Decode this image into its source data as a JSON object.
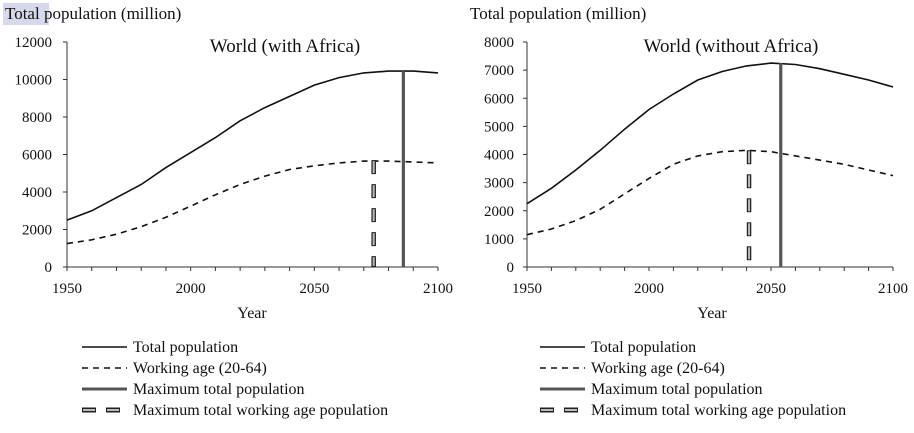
{
  "chart_data": [
    {
      "type": "line",
      "y_axis_title": "Total population (million)",
      "y_axis_title_highlight": "Total",
      "title": "World (with Africa)",
      "xlabel": "Year",
      "xlim": [
        1950,
        2100
      ],
      "ylim": [
        0,
        12000
      ],
      "x_ticks": [
        1950,
        2000,
        2050,
        2100
      ],
      "y_ticks": [
        0,
        2000,
        4000,
        6000,
        8000,
        10000,
        12000
      ],
      "grid": false,
      "x": [
        1950,
        1960,
        1970,
        1980,
        1990,
        2000,
        2010,
        2020,
        2030,
        2040,
        2050,
        2060,
        2070,
        2080,
        2090,
        2100
      ],
      "series": [
        {
          "name": "Total population",
          "style": "solid",
          "values": [
            2500,
            3000,
            3700,
            4400,
            5300,
            6100,
            6900,
            7800,
            8500,
            9100,
            9700,
            10100,
            10350,
            10450,
            10450,
            10350
          ]
        },
        {
          "name": "Working age (20-64)",
          "style": "dashed",
          "values": [
            1250,
            1450,
            1750,
            2150,
            2650,
            3250,
            3850,
            4400,
            4850,
            5200,
            5400,
            5550,
            5650,
            5650,
            5600,
            5550
          ]
        }
      ],
      "markers": [
        {
          "name": "Maximum total population",
          "x": 2086,
          "y": 10450,
          "style": "solid"
        },
        {
          "name": "Maximum total working age population",
          "x": 2074,
          "y": 5700,
          "style": "dashed"
        }
      ]
    },
    {
      "type": "line",
      "y_axis_title": "Total population (million)",
      "title": "World (without Africa)",
      "xlabel": "Year",
      "xlim": [
        1950,
        2100
      ],
      "ylim": [
        0,
        8000
      ],
      "x_ticks": [
        1950,
        2000,
        2050,
        2100
      ],
      "y_ticks": [
        0,
        1000,
        2000,
        3000,
        4000,
        5000,
        6000,
        7000,
        8000
      ],
      "grid": false,
      "x": [
        1950,
        1960,
        1970,
        1980,
        1990,
        2000,
        2010,
        2020,
        2030,
        2040,
        2050,
        2060,
        2070,
        2080,
        2090,
        2100
      ],
      "series": [
        {
          "name": "Total population",
          "style": "solid",
          "values": [
            2250,
            2800,
            3450,
            4150,
            4900,
            5600,
            6150,
            6650,
            6950,
            7150,
            7250,
            7200,
            7050,
            6850,
            6650,
            6400
          ]
        },
        {
          "name": "Working age (20-64)",
          "style": "dashed",
          "values": [
            1150,
            1350,
            1650,
            2050,
            2600,
            3150,
            3650,
            3950,
            4100,
            4150,
            4100,
            3950,
            3800,
            3650,
            3450,
            3250
          ]
        }
      ],
      "markers": [
        {
          "name": "Maximum total population",
          "x": 2054,
          "y": 7250,
          "style": "solid"
        },
        {
          "name": "Maximum total working age population",
          "x": 2041,
          "y": 4150,
          "style": "dashed"
        }
      ]
    }
  ],
  "colors": {
    "line": "#111111",
    "marker_solid": "#555555",
    "highlight": "#d6d9ea"
  }
}
